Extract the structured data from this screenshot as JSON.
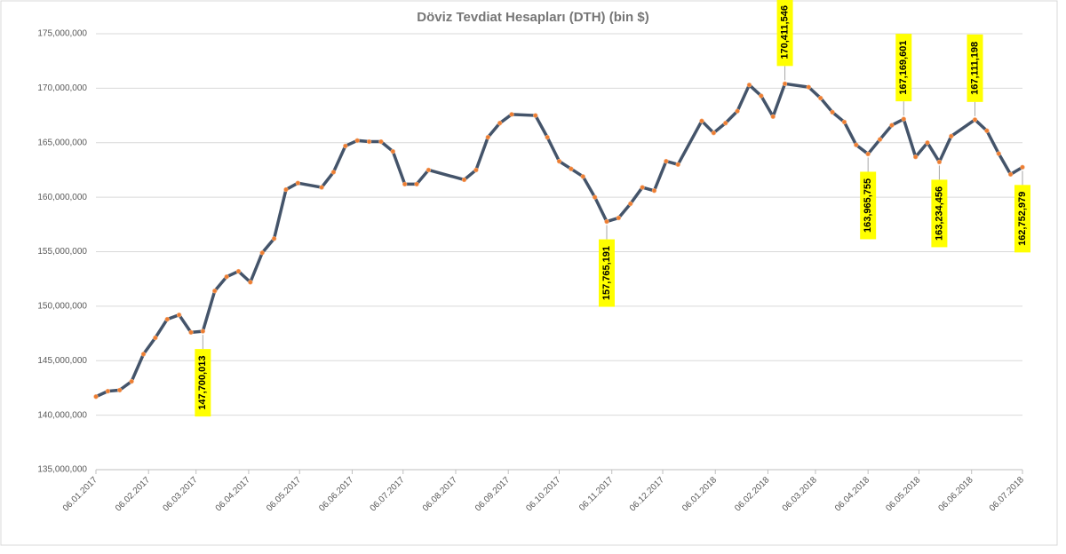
{
  "chart_data": {
    "type": "line",
    "title": "Döviz Tevdiat Hesapları (DTH) (bin $)",
    "x": [
      "06.01.2017",
      "13.01.2017",
      "20.01.2017",
      "27.01.2017",
      "03.02.2017",
      "10.02.2017",
      "17.02.2017",
      "24.02.2017",
      "03.03.2017",
      "10.03.2017",
      "17.03.2017",
      "24.03.2017",
      "31.03.2017",
      "07.04.2017",
      "14.04.2017",
      "21.04.2017",
      "28.04.2017",
      "05.05.2017",
      "19.05.2017",
      "26.05.2017",
      "02.06.2017",
      "09.06.2017",
      "16.06.2017",
      "23.06.2017",
      "30.06.2017",
      "07.07.2017",
      "14.07.2017",
      "21.07.2017",
      "11.08.2017",
      "18.08.2017",
      "25.08.2017",
      "01.09.2017",
      "08.09.2017",
      "22.09.2017",
      "29.09.2017",
      "06.10.2017",
      "13.10.2017",
      "20.10.2017",
      "27.10.2017",
      "03.11.2017",
      "10.11.2017",
      "17.11.2017",
      "24.11.2017",
      "01.12.2017",
      "08.12.2017",
      "15.12.2017",
      "29.12.2017",
      "05.01.2018",
      "12.01.2018",
      "19.01.2018",
      "26.01.2018",
      "02.02.2018",
      "09.02.2018",
      "16.02.2018",
      "02.03.2018",
      "09.03.2018",
      "16.03.2018",
      "23.03.2018",
      "30.03.2018",
      "06.04.2018",
      "13.04.2018",
      "20.04.2018",
      "27.04.2018",
      "04.05.2018",
      "11.05.2018",
      "18.05.2018",
      "25.05.2018",
      "08.06.2018",
      "15.06.2018",
      "22.06.2018",
      "29.06.2018",
      "06.07.2018"
    ],
    "values": [
      141700000,
      142200000,
      142300000,
      143100000,
      145600000,
      147100000,
      148800000,
      149200000,
      147600000,
      147700013,
      151400000,
      152700000,
      153200000,
      152200000,
      154900000,
      156200000,
      160700000,
      161300000,
      160900000,
      162300000,
      164700000,
      165200000,
      165100000,
      165100000,
      164200000,
      161200000,
      161200000,
      162500000,
      161600000,
      162500000,
      165500000,
      166800000,
      167600000,
      167500000,
      165500000,
      163300000,
      162600000,
      161900000,
      160000000,
      157765191,
      158100000,
      159400000,
      160900000,
      160600000,
      163300000,
      163000000,
      167000000,
      165900000,
      166800000,
      167900000,
      170300000,
      169300000,
      167400000,
      170411546,
      170100000,
      169100000,
      167800000,
      166900000,
      164800000,
      163965755,
      165300000,
      166600000,
      167169601,
      163700000,
      165000000,
      163234456,
      165600000,
      167111198,
      166100000,
      164000000,
      162100000,
      162752979
    ],
    "value_labels": [
      null,
      null,
      null,
      null,
      null,
      null,
      null,
      null,
      null,
      "147,700,013",
      null,
      null,
      null,
      null,
      null,
      null,
      null,
      null,
      null,
      null,
      null,
      null,
      null,
      null,
      null,
      null,
      null,
      null,
      null,
      null,
      null,
      null,
      null,
      null,
      null,
      null,
      null,
      null,
      null,
      "157,765,191",
      null,
      null,
      null,
      null,
      null,
      null,
      null,
      null,
      null,
      null,
      null,
      null,
      null,
      "170,411,546",
      null,
      null,
      null,
      null,
      null,
      "163,965,755",
      null,
      null,
      "167,169,601",
      null,
      null,
      "163,234,456",
      null,
      "167,111,198",
      null,
      null,
      null,
      "162,752,979"
    ],
    "color": "#44546a",
    "marker_color": "#ed7d31",
    "label_color": "#ffff00",
    "xlim": [
      "06.01.2017",
      "06.07.2018"
    ],
    "xticks": [
      "06.01.2017",
      "06.02.2017",
      "06.03.2017",
      "06.04.2017",
      "06.05.2017",
      "06.06.2017",
      "06.07.2017",
      "06.08.2017",
      "06.09.2017",
      "06.10.2017",
      "06.11.2017",
      "06.12.2017",
      "06.01.2018",
      "06.02.2018",
      "06.03.2018",
      "06.04.2018",
      "06.05.2018",
      "06.06.2018",
      "06.07.2018"
    ],
    "ylim": [
      135000000,
      175000000
    ],
    "yticks": [
      {
        "value": 135000000,
        "label": "135,000,000"
      },
      {
        "value": 140000000,
        "label": "140,000,000"
      },
      {
        "value": 145000000,
        "label": "145,000,000"
      },
      {
        "value": 150000000,
        "label": "150,000,000"
      },
      {
        "value": 155000000,
        "label": "155,000,000"
      },
      {
        "value": 160000000,
        "label": "160,000,000"
      },
      {
        "value": 165000000,
        "label": "165,000,000"
      },
      {
        "value": 170000000,
        "label": "170,000,000"
      },
      {
        "value": 175000000,
        "label": "175,000,000"
      }
    ],
    "grid": true
  }
}
